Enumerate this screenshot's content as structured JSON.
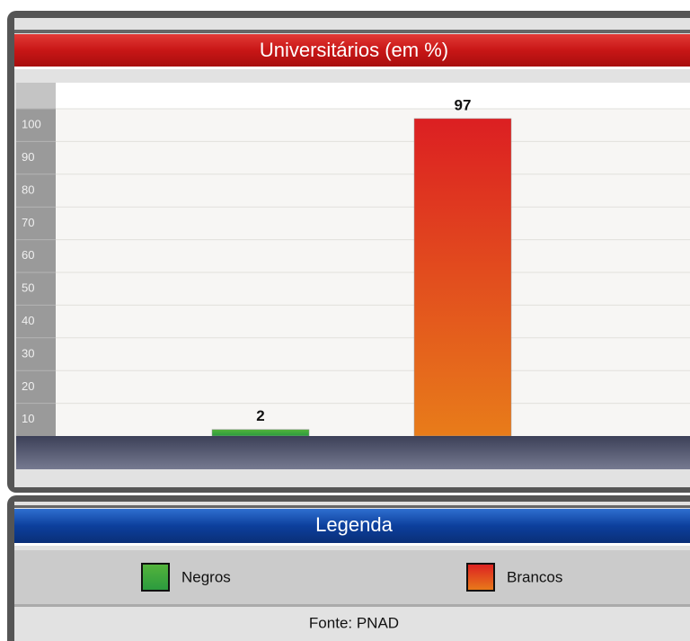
{
  "chart_data": {
    "type": "bar",
    "title": "Universitários (em %)",
    "categories": [
      "Negros",
      "Brancos"
    ],
    "values": [
      2,
      97
    ],
    "colors": [
      [
        "#55b43c",
        "#2a9a3e"
      ],
      [
        "#dc1f22",
        "#e87c1a"
      ]
    ],
    "ylim": [
      0,
      100
    ],
    "yticks": [
      10,
      20,
      30,
      40,
      50,
      60,
      70,
      80,
      90,
      100
    ],
    "grid": true,
    "legend_title": "Legenda",
    "source": "Fonte: PNAD"
  }
}
